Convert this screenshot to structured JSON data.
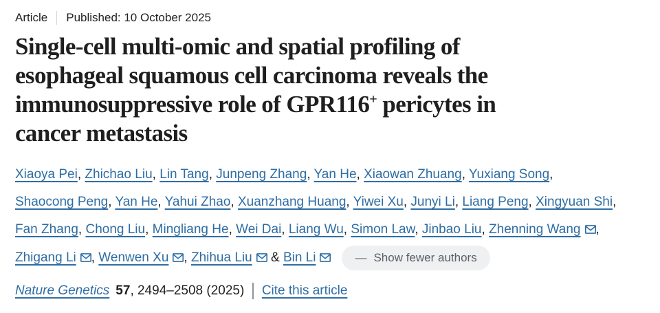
{
  "meta": {
    "type_label": "Article",
    "published_label": "Published: 10 October 2025"
  },
  "title": {
    "line1": "Single-cell multi-omic and spatial profiling of",
    "line2": "esophageal squamous cell carcinoma reveals the",
    "line3_pre": "immunosuppressive role of GPR116",
    "line3_sup": "+",
    "line3_post": " pericytes in",
    "line4": "cancer metastasis"
  },
  "authors": {
    "list": [
      {
        "name": "Xiaoya Pei",
        "email": false
      },
      {
        "name": "Zhichao Liu",
        "email": false
      },
      {
        "name": "Lin Tang",
        "email": false
      },
      {
        "name": "Junpeng Zhang",
        "email": false
      },
      {
        "name": "Yan He",
        "email": false
      },
      {
        "name": "Xiaowan Zhuang",
        "email": false
      },
      {
        "name": "Yuxiang Song",
        "email": false
      },
      {
        "name": "Shaocong Peng",
        "email": false
      },
      {
        "name": "Yan He",
        "email": false
      },
      {
        "name": "Yahui Zhao",
        "email": false
      },
      {
        "name": "Xuanzhang Huang",
        "email": false
      },
      {
        "name": "Yiwei Xu",
        "email": false
      },
      {
        "name": "Junyi Li",
        "email": false
      },
      {
        "name": "Liang Peng",
        "email": false
      },
      {
        "name": "Xingyuan Shi",
        "email": false
      },
      {
        "name": "Fan Zhang",
        "email": false
      },
      {
        "name": "Chong Liu",
        "email": false
      },
      {
        "name": "Mingliang He",
        "email": false
      },
      {
        "name": "Wei Dai",
        "email": false
      },
      {
        "name": "Liang Wu",
        "email": false
      },
      {
        "name": "Simon Law",
        "email": false
      },
      {
        "name": "Jinbao Liu",
        "email": false
      },
      {
        "name": "Zhenning Wang",
        "email": true
      },
      {
        "name": "Zhigang Li",
        "email": true
      },
      {
        "name": "Wenwen Xu",
        "email": true
      },
      {
        "name": "Zhihua Liu",
        "email": true
      },
      {
        "name": "Bin Li",
        "email": true
      }
    ],
    "separator": ", ",
    "last_separator": "&",
    "email_icon_name": "envelope-icon",
    "collapse_icon": "—",
    "show_fewer_label": "Show fewer authors"
  },
  "citation": {
    "journal": "Nature Genetics",
    "volume": "57",
    "pages": ", 2494–2508 (2025)",
    "cite_link": "Cite this article"
  },
  "colors": {
    "link_blue": "#2e6da4",
    "text_dark": "#222222",
    "meta_divider": "#ccd6db",
    "citation_divider": "#8b949b",
    "pill_bg": "#eef0f1",
    "pill_text": "#5c6065"
  }
}
